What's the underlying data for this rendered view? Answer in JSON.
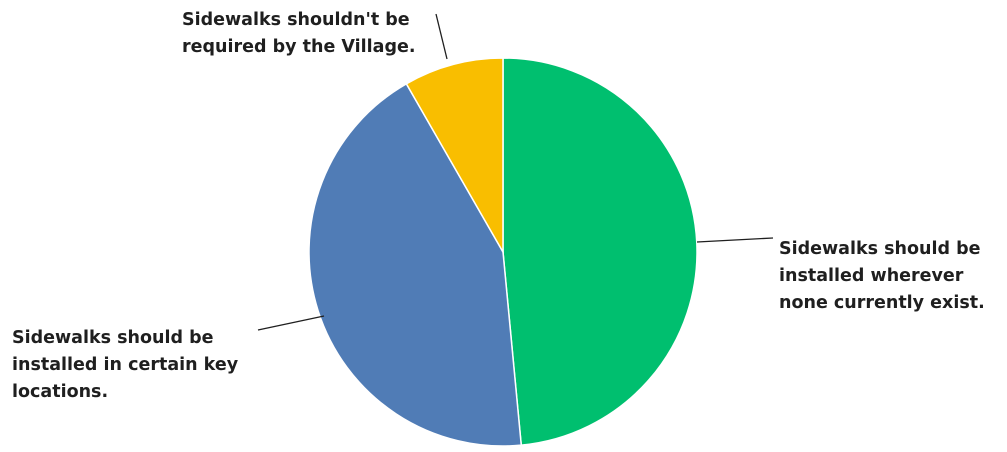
{
  "chart_data": {
    "type": "pie",
    "title": "",
    "slices": [
      {
        "label": "Sidewalks should be installed wherever none currently exist.",
        "lines": [
          "Sidewalks should be",
          "installed wherever",
          "none currently exist."
        ],
        "value": 48.5,
        "color": "#00BF6F"
      },
      {
        "label": "Sidewalks should be installed in certain key locations.",
        "lines": [
          "Sidewalks should be",
          "installed in certain key",
          "locations."
        ],
        "value": 43.2,
        "color": "#507CB6"
      },
      {
        "label": "Sidewalks shouldn't be required by the Village.",
        "lines": [
          "Sidewalks shouldn't be",
          "required by the Village."
        ],
        "value": 8.3,
        "color": "#F9BE00"
      }
    ],
    "legend": "none"
  }
}
